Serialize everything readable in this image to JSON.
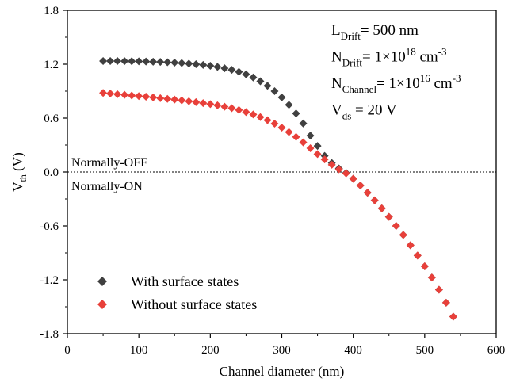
{
  "chart_data": {
    "type": "scatter",
    "xlabel": "Channel diameter (nm)",
    "ylabel": {
      "main": "V",
      "sub": "th",
      "unit": " (V)"
    },
    "xlim": [
      0,
      600
    ],
    "ylim": [
      -1.8,
      1.8
    ],
    "xticks": [
      0,
      100,
      200,
      300,
      400,
      500,
      600
    ],
    "yticks": [
      -1.8,
      -1.2,
      -0.6,
      0.0,
      0.6,
      1.2,
      1.8
    ],
    "xtick_labels": [
      "0",
      "100",
      "200",
      "300",
      "400",
      "500",
      "600"
    ],
    "ytick_labels": [
      "-1.8",
      "-1.2",
      "-0.6",
      "0.0",
      "0.6",
      "1.2",
      "1.8"
    ],
    "grid": false,
    "legend_position": "bottom-left",
    "threshold_line": {
      "y": 0,
      "style": "dotted"
    },
    "region_labels": {
      "above": "Normally-OFF",
      "below": "Normally-ON"
    },
    "params": [
      {
        "base": "L",
        "sub": "Drift",
        "tail": "= 500 nm"
      },
      {
        "base": "N",
        "sub": "Drift",
        "mid": "=  1×10",
        "sup": "18",
        "tail": " cm",
        "sup2": "-3"
      },
      {
        "base": "N",
        "sub": "Channel",
        "mid": "= 1×10",
        "sup": "16",
        "tail": " cm",
        "sup2": "-3"
      },
      {
        "base": "V",
        "sub": "ds",
        "tail": " = 20 V"
      }
    ],
    "series": [
      {
        "name": "With surface states",
        "color": "#404040",
        "marker": "diamond",
        "x": [
          50,
          60,
          70,
          80,
          90,
          100,
          110,
          120,
          130,
          140,
          150,
          160,
          170,
          180,
          190,
          200,
          210,
          220,
          230,
          240,
          250,
          260,
          270,
          280,
          290,
          300,
          310,
          320,
          330,
          340,
          350,
          360,
          370,
          380,
          390,
          400,
          410,
          420,
          430,
          440,
          450,
          460,
          470,
          480,
          490,
          500,
          510,
          520,
          530,
          540
        ],
        "y": [
          1.235,
          1.235,
          1.235,
          1.234,
          1.233,
          1.232,
          1.23,
          1.228,
          1.225,
          1.222,
          1.218,
          1.213,
          1.207,
          1.2,
          1.192,
          1.182,
          1.17,
          1.155,
          1.137,
          1.115,
          1.087,
          1.052,
          1.01,
          0.96,
          0.9,
          0.83,
          0.748,
          0.652,
          0.54,
          0.405,
          0.29,
          0.18,
          0.1,
          0.04,
          -0.01,
          -0.075,
          -0.15,
          -0.23,
          -0.315,
          -0.405,
          -0.5,
          -0.6,
          -0.7,
          -0.815,
          -0.93,
          -1.05,
          -1.175,
          -1.31,
          -1.455,
          -1.61
        ]
      },
      {
        "name": "Without surface states",
        "color": "#e8403a",
        "marker": "diamond",
        "x": [
          50,
          60,
          70,
          80,
          90,
          100,
          110,
          120,
          130,
          140,
          150,
          160,
          170,
          180,
          190,
          200,
          210,
          220,
          230,
          240,
          250,
          260,
          270,
          280,
          290,
          300,
          310,
          320,
          330,
          340,
          350,
          360,
          370,
          380,
          390,
          400,
          410,
          420,
          430,
          440,
          450,
          460,
          470,
          480,
          490,
          500,
          510,
          520,
          530,
          540
        ],
        "y": [
          0.88,
          0.873,
          0.866,
          0.859,
          0.852,
          0.845,
          0.838,
          0.83,
          0.822,
          0.814,
          0.806,
          0.797,
          0.788,
          0.778,
          0.767,
          0.755,
          0.742,
          0.727,
          0.71,
          0.69,
          0.667,
          0.641,
          0.611,
          0.577,
          0.538,
          0.494,
          0.445,
          0.39,
          0.33,
          0.265,
          0.2,
          0.14,
          0.08,
          0.03,
          -0.015,
          -0.075,
          -0.15,
          -0.23,
          -0.315,
          -0.405,
          -0.5,
          -0.6,
          -0.7,
          -0.815,
          -0.93,
          -1.05,
          -1.175,
          -1.31,
          -1.455,
          -1.61
        ]
      }
    ]
  }
}
